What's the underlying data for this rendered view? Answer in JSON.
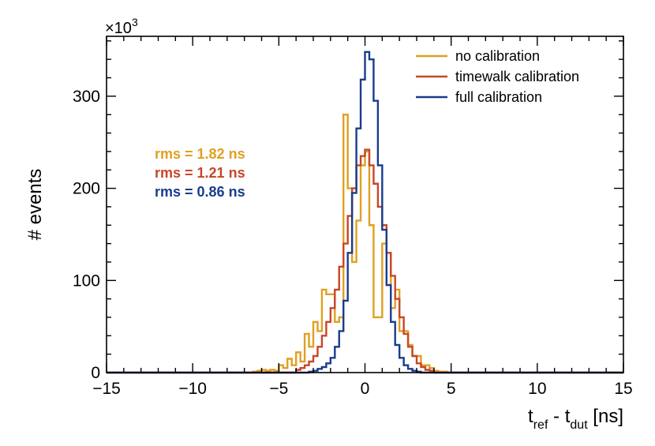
{
  "chart_data": {
    "type": "histogram",
    "title": "",
    "xlabel": {
      "main": "t",
      "sub1": "ref",
      "mid": " - t",
      "sub2": "dut",
      "tail": " [ns]"
    },
    "ylabel": "# events",
    "y_multiplier": {
      "base": "×10",
      "exp": "3"
    },
    "xlim": [
      -15,
      15
    ],
    "ylim": [
      0,
      365
    ],
    "xticks": [
      -15,
      -10,
      -5,
      0,
      5,
      10,
      15
    ],
    "xtick_labels": [
      "−15",
      "−10",
      "−5",
      "0",
      "5",
      "10",
      "15"
    ],
    "yticks": [
      0,
      100,
      200,
      300
    ],
    "ytick_labels": [
      "0",
      "100",
      "200",
      "300"
    ],
    "legend_position": "top-right",
    "bin_width": 0.25,
    "series": [
      {
        "name": "no calibration",
        "color": "#e0a020",
        "rms_label": "rms = 1.82 ns",
        "bins": [
          [
            -6.5,
            1
          ],
          [
            -6.25,
            2
          ],
          [
            -6.0,
            3
          ],
          [
            -5.75,
            2
          ],
          [
            -5.5,
            3
          ],
          [
            -5.25,
            2
          ],
          [
            -5.0,
            8
          ],
          [
            -4.75,
            5
          ],
          [
            -4.5,
            15
          ],
          [
            -4.25,
            8
          ],
          [
            -4.0,
            22
          ],
          [
            -3.75,
            12
          ],
          [
            -3.5,
            42
          ],
          [
            -3.25,
            28
          ],
          [
            -3.0,
            55
          ],
          [
            -2.75,
            45
          ],
          [
            -2.5,
            90
          ],
          [
            -2.25,
            85
          ],
          [
            -2.0,
            85
          ],
          [
            -1.75,
            55
          ],
          [
            -1.5,
            60
          ],
          [
            -1.25,
            280
          ],
          [
            -1.0,
            200
          ],
          [
            -0.75,
            120
          ],
          [
            -0.5,
            165
          ],
          [
            -0.25,
            225
          ],
          [
            0.0,
            240
          ],
          [
            0.25,
            160
          ],
          [
            0.5,
            60
          ],
          [
            0.75,
            60
          ],
          [
            1.0,
            140
          ],
          [
            1.25,
            130
          ],
          [
            1.5,
            70
          ],
          [
            1.75,
            90
          ],
          [
            2.0,
            45
          ],
          [
            2.25,
            45
          ],
          [
            2.5,
            30
          ],
          [
            2.75,
            18
          ],
          [
            3.0,
            18
          ],
          [
            3.25,
            8
          ],
          [
            3.5,
            8
          ],
          [
            3.75,
            5
          ],
          [
            4.0,
            2
          ],
          [
            4.25,
            1
          ],
          [
            4.5,
            1
          ]
        ]
      },
      {
        "name": "timewalk calibration",
        "color": "#c84628",
        "rms_label": "rms = 1.21 ns",
        "bins": [
          [
            -4.0,
            3
          ],
          [
            -3.75,
            5
          ],
          [
            -3.5,
            8
          ],
          [
            -3.25,
            12
          ],
          [
            -3.0,
            18
          ],
          [
            -2.75,
            28
          ],
          [
            -2.5,
            40
          ],
          [
            -2.25,
            55
          ],
          [
            -2.0,
            70
          ],
          [
            -1.75,
            90
          ],
          [
            -1.5,
            115
          ],
          [
            -1.25,
            140
          ],
          [
            -1.0,
            170
          ],
          [
            -0.75,
            200
          ],
          [
            -0.5,
            225
          ],
          [
            -0.25,
            235
          ],
          [
            0.0,
            242
          ],
          [
            0.25,
            225
          ],
          [
            0.5,
            205
          ],
          [
            0.75,
            180
          ],
          [
            1.0,
            160
          ],
          [
            1.25,
            130
          ],
          [
            1.5,
            105
          ],
          [
            1.75,
            80
          ],
          [
            2.0,
            60
          ],
          [
            2.25,
            42
          ],
          [
            2.5,
            28
          ],
          [
            2.75,
            18
          ],
          [
            3.0,
            10
          ],
          [
            3.25,
            6
          ],
          [
            3.5,
            3
          ],
          [
            3.75,
            2
          ]
        ]
      },
      {
        "name": "full calibration",
        "color": "#1a3c8c",
        "rms_label": "rms = 0.86 ns",
        "bins": [
          [
            -3.25,
            1
          ],
          [
            -3.0,
            2
          ],
          [
            -2.75,
            4
          ],
          [
            -2.5,
            6
          ],
          [
            -2.25,
            10
          ],
          [
            -2.0,
            16
          ],
          [
            -1.75,
            28
          ],
          [
            -1.5,
            45
          ],
          [
            -1.25,
            78
          ],
          [
            -1.0,
            130
          ],
          [
            -0.75,
            195
          ],
          [
            -0.5,
            265
          ],
          [
            -0.25,
            318
          ],
          [
            0.0,
            348
          ],
          [
            0.25,
            340
          ],
          [
            0.5,
            295
          ],
          [
            0.75,
            225
          ],
          [
            1.0,
            155
          ],
          [
            1.25,
            95
          ],
          [
            1.5,
            55
          ],
          [
            1.75,
            30
          ],
          [
            2.0,
            16
          ],
          [
            2.25,
            8
          ],
          [
            2.5,
            4
          ],
          [
            2.75,
            2
          ],
          [
            3.0,
            1
          ]
        ]
      }
    ]
  }
}
